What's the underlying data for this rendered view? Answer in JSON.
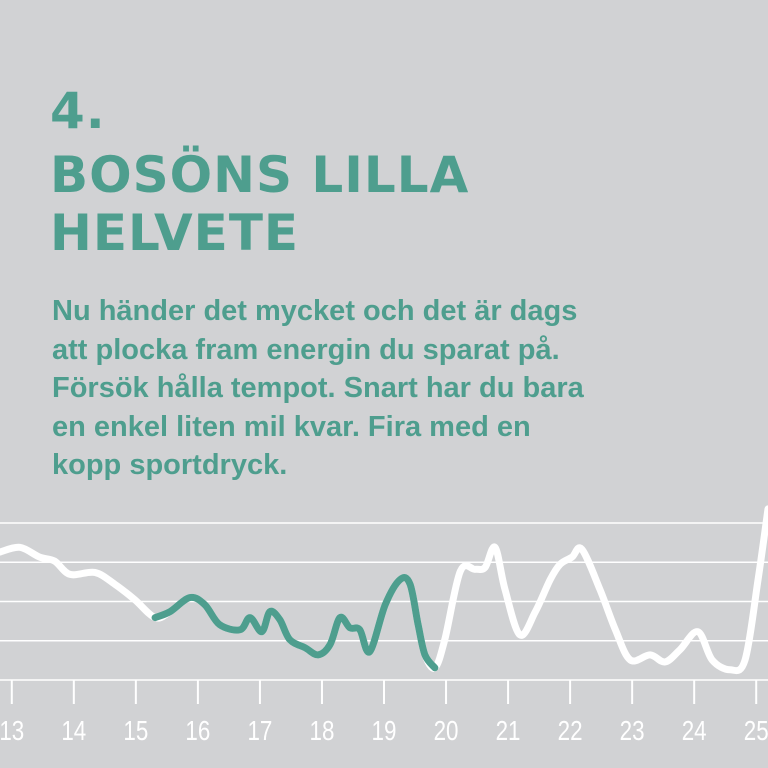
{
  "header": {
    "number": "4.",
    "title_lines": [
      "BOSÖNS LILLA",
      "HELVETE"
    ]
  },
  "body_lines": [
    "Nu händer det mycket och det är dags",
    "att plocka fram energin du sparat på.",
    "Försök hålla tempot. Snart har du bara",
    "en enkel liten mil kvar. Fira med en",
    "kopp sportdryck."
  ],
  "chart_data": {
    "type": "line",
    "color": "#ffffff",
    "highlight_color": "#4e9e8e",
    "highlight_range": [
      15.31,
      19.82
    ],
    "grid": true,
    "x": [
      12.81,
      13.13,
      13.45,
      13.69,
      13.94,
      14.34,
      14.66,
      14.98,
      15.31,
      15.55,
      15.87,
      16.11,
      16.35,
      16.68,
      16.84,
      17.03,
      17.16,
      17.32,
      17.48,
      17.73,
      17.94,
      18.13,
      18.29,
      18.45,
      18.61,
      18.77,
      19.02,
      19.26,
      19.42,
      19.55,
      19.66,
      19.82,
      19.98,
      20.23,
      20.47,
      20.63,
      20.79,
      20.95,
      21.19,
      21.44,
      21.68,
      21.84,
      22.03,
      22.19,
      22.48,
      22.73,
      22.97,
      23.29,
      23.53,
      23.77,
      24.06,
      24.29,
      24.58,
      24.82,
      25.03,
      25.19
    ],
    "values": [
      3.26,
      3.38,
      3.13,
      3.03,
      2.69,
      2.74,
      2.44,
      2.05,
      1.59,
      1.74,
      2.1,
      1.92,
      1.41,
      1.28,
      1.59,
      1.23,
      1.74,
      1.54,
      1.03,
      0.82,
      0.64,
      0.9,
      1.59,
      1.33,
      1.28,
      0.72,
      1.92,
      2.56,
      2.44,
      1.41,
      0.64,
      0.31,
      1.03,
      2.77,
      2.82,
      2.87,
      3.38,
      2.31,
      1.15,
      1.74,
      2.56,
      2.95,
      3.13,
      3.33,
      2.31,
      1.28,
      0.51,
      0.64,
      0.46,
      0.77,
      1.23,
      0.51,
      0.26,
      0.51,
      2.56,
      4.36
    ],
    "xlim": [
      12.81,
      25.19
    ],
    "xticks": [
      13,
      14,
      15,
      16,
      17,
      18,
      19,
      20,
      21,
      22,
      23,
      24,
      25
    ],
    "ylim": [
      0,
      4
    ],
    "yticks": [
      0,
      1,
      2,
      3,
      4
    ]
  }
}
